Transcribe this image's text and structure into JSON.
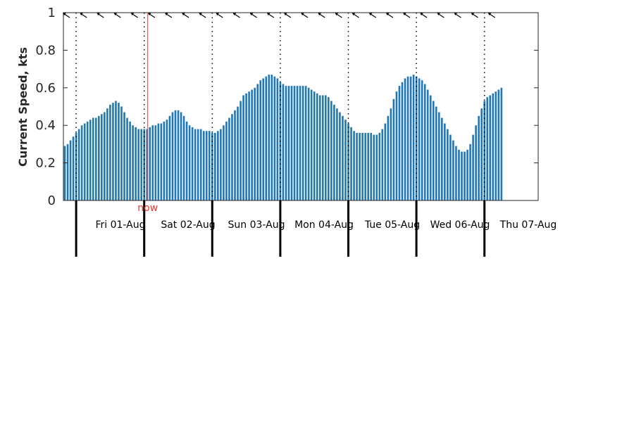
{
  "chart_data": {
    "type": "bar",
    "ylabel": "Current Speed, kts",
    "ylim": [
      0,
      1
    ],
    "yticks": [
      "0",
      "0.2",
      "0.4",
      "0.6",
      "0.8",
      "1"
    ],
    "day_labels": [
      "Fri 01-Aug",
      "Sat 02-Aug",
      "Sun 03-Aug",
      "Mon 04-Aug",
      "Tue 05-Aug",
      "Wed 06-Aug",
      "Thu 07-Aug"
    ],
    "x_unit": "hours from 2025-07-31 20:00",
    "day_starts_hour": [
      4,
      28,
      52,
      76,
      100,
      124,
      148
    ],
    "now_hour": 29,
    "now_label": "now",
    "bar_color": "#1f77b4",
    "now_color": "#e8372c",
    "values": [
      0.29,
      0.3,
      0.32,
      0.34,
      0.36,
      0.38,
      0.4,
      0.41,
      0.42,
      0.43,
      0.44,
      0.44,
      0.45,
      0.46,
      0.47,
      0.49,
      0.51,
      0.52,
      0.53,
      0.52,
      0.5,
      0.47,
      0.44,
      0.42,
      0.4,
      0.39,
      0.38,
      0.38,
      0.38,
      0.38,
      0.39,
      0.4,
      0.4,
      0.41,
      0.41,
      0.42,
      0.43,
      0.45,
      0.47,
      0.48,
      0.48,
      0.47,
      0.45,
      0.42,
      0.4,
      0.39,
      0.38,
      0.38,
      0.38,
      0.37,
      0.37,
      0.37,
      0.36,
      0.36,
      0.37,
      0.38,
      0.4,
      0.42,
      0.44,
      0.46,
      0.48,
      0.5,
      0.53,
      0.56,
      0.57,
      0.58,
      0.59,
      0.6,
      0.62,
      0.64,
      0.65,
      0.66,
      0.67,
      0.67,
      0.66,
      0.65,
      0.63,
      0.62,
      0.61,
      0.61,
      0.61,
      0.61,
      0.61,
      0.61,
      0.61,
      0.61,
      0.6,
      0.59,
      0.58,
      0.57,
      0.56,
      0.56,
      0.56,
      0.55,
      0.53,
      0.51,
      0.49,
      0.47,
      0.45,
      0.43,
      0.41,
      0.39,
      0.37,
      0.36,
      0.36,
      0.36,
      0.36,
      0.36,
      0.36,
      0.35,
      0.35,
      0.36,
      0.38,
      0.41,
      0.45,
      0.49,
      0.54,
      0.58,
      0.61,
      0.63,
      0.65,
      0.66,
      0.66,
      0.67,
      0.66,
      0.65,
      0.64,
      0.62,
      0.59,
      0.56,
      0.53,
      0.5,
      0.47,
      0.44,
      0.41,
      0.38,
      0.35,
      0.32,
      0.29,
      0.27,
      0.26,
      0.26,
      0.27,
      0.3,
      0.35,
      0.4,
      0.45,
      0.49,
      0.53,
      0.55,
      0.56,
      0.57,
      0.58,
      0.59,
      0.6
    ]
  }
}
